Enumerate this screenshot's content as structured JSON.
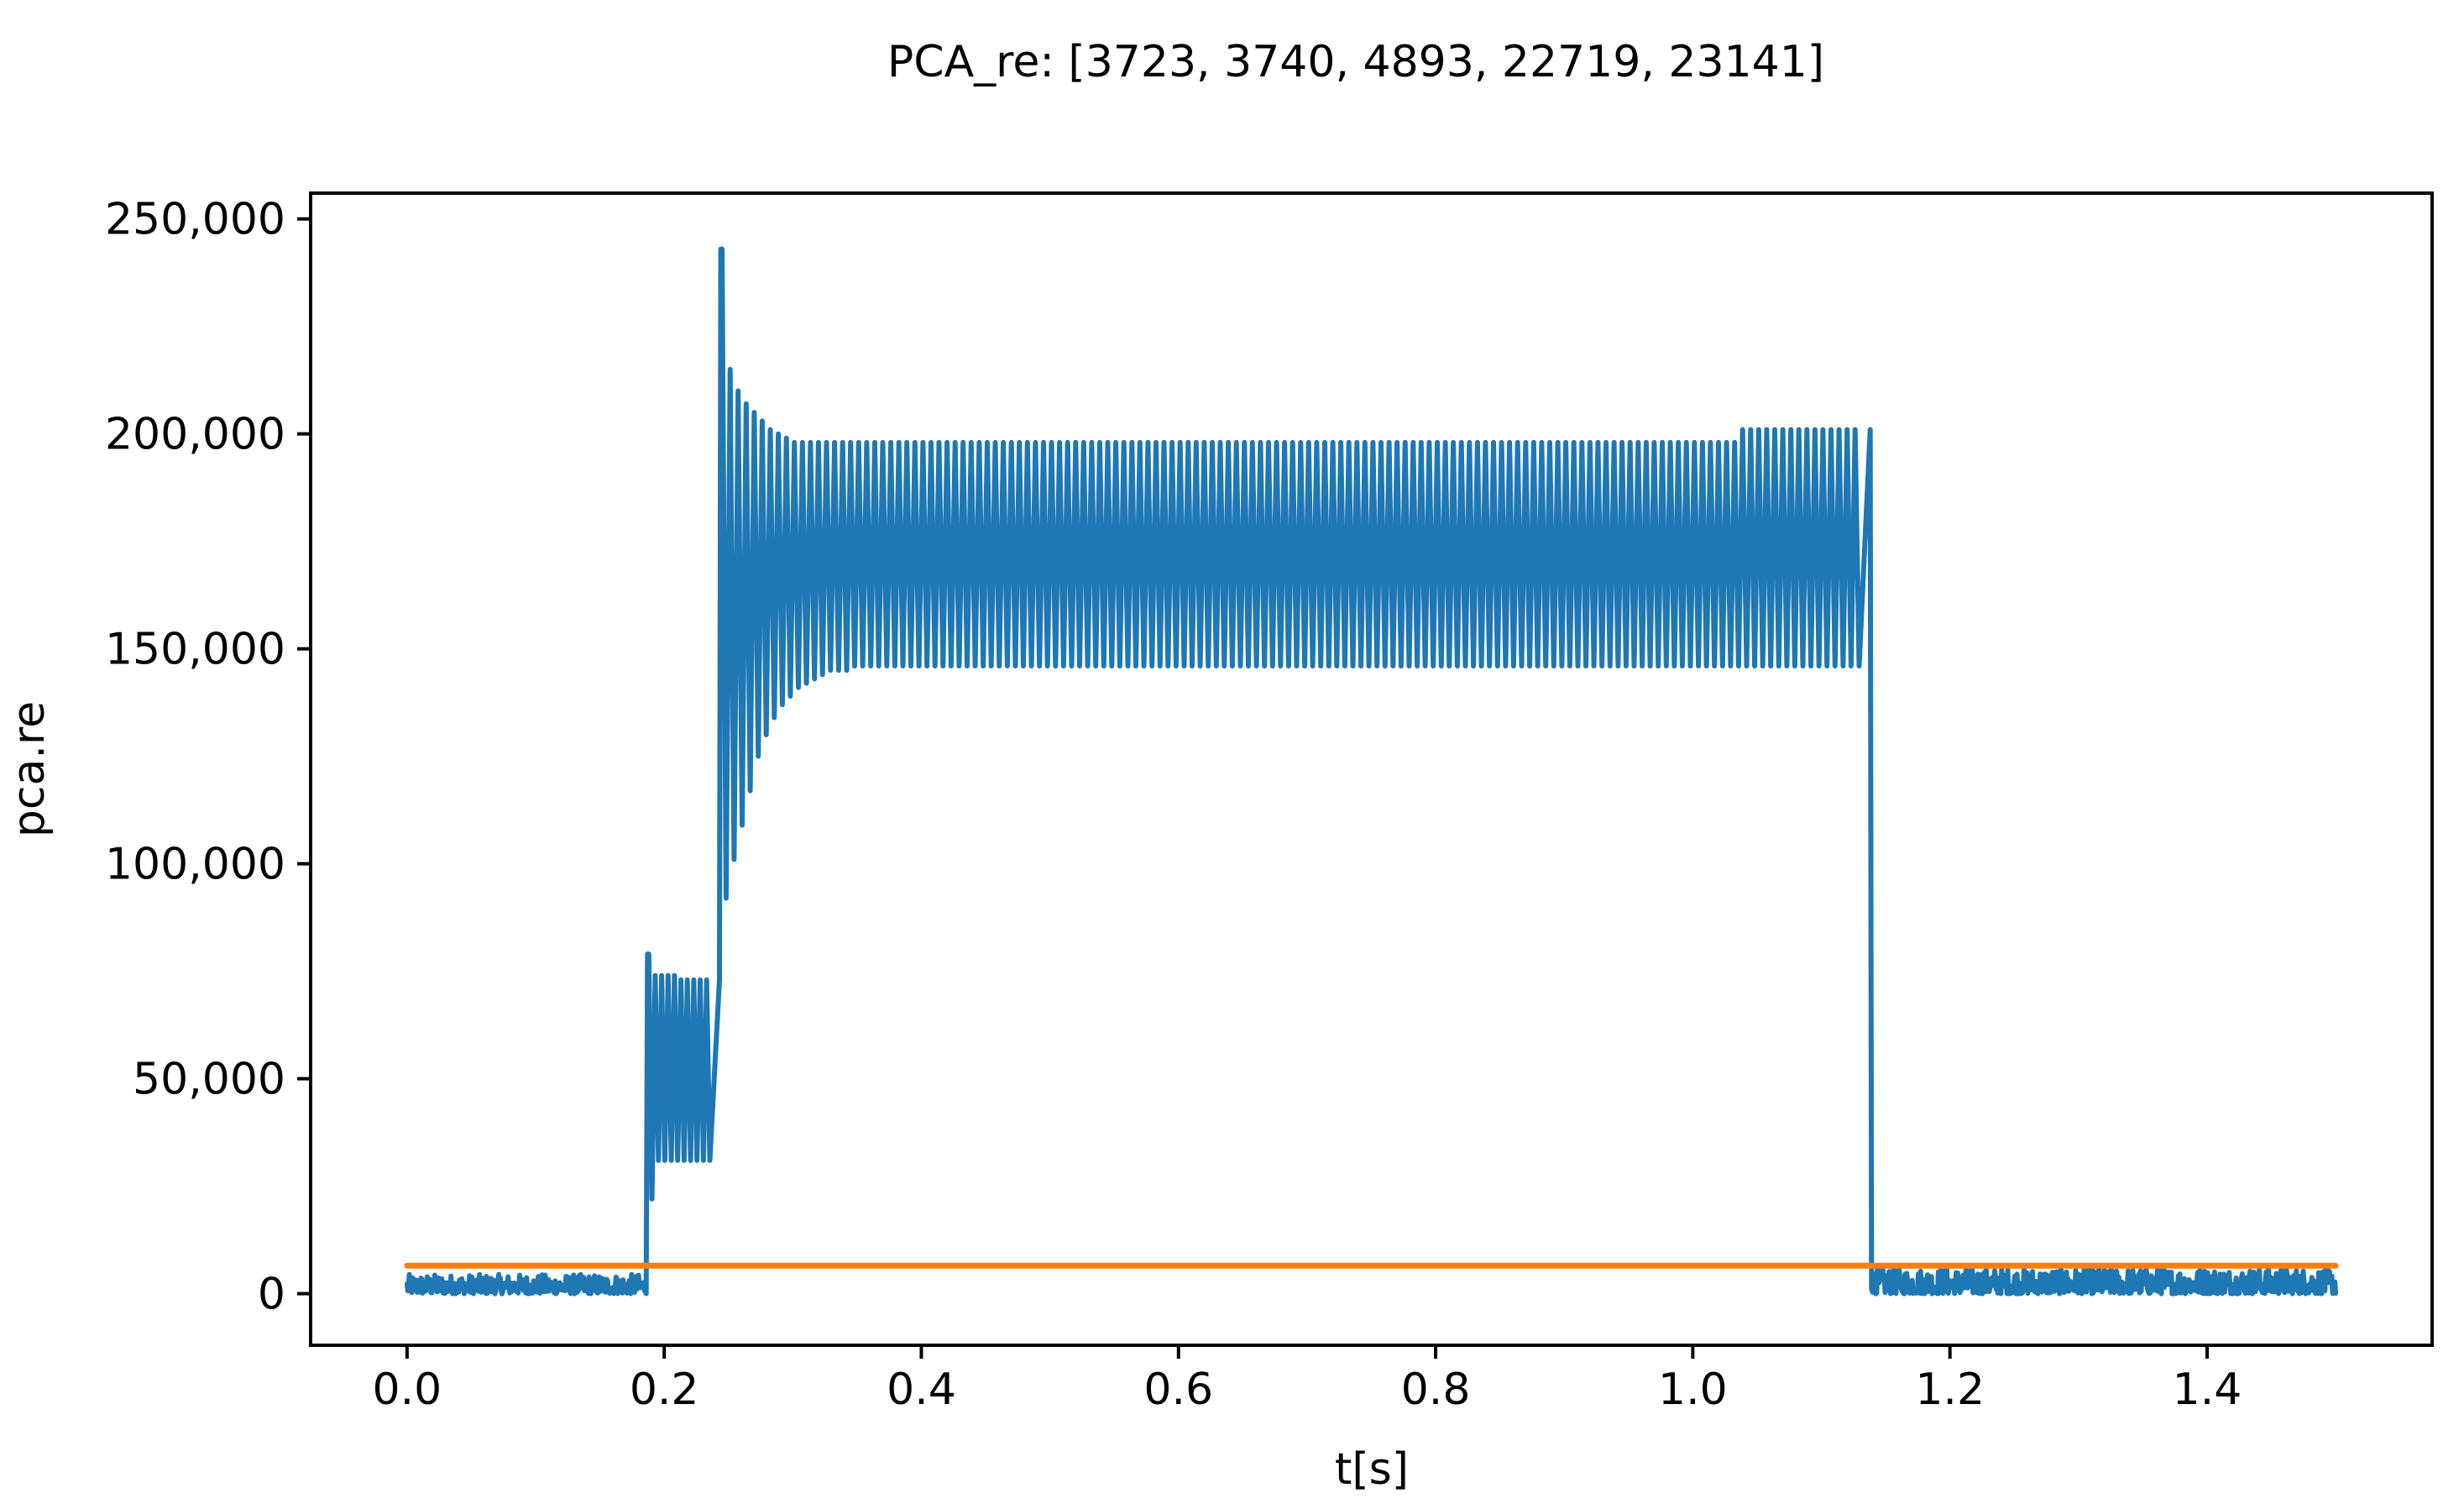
{
  "chart_data": {
    "type": "line",
    "title": "PCA_re: [3723, 3740, 4893, 22719, 23141]",
    "xlabel": "t[s]",
    "ylabel": "pca.re",
    "xlim": [
      -0.075,
      1.575
    ],
    "ylim": [
      -12000,
      256000
    ],
    "grid": false,
    "legend": "none",
    "x_ticks": [
      0.0,
      0.2,
      0.4,
      0.6,
      0.8,
      1.0,
      1.2,
      1.4
    ],
    "x_tick_labels": [
      "0.0",
      "0.2",
      "0.4",
      "0.6",
      "0.8",
      "1.0",
      "1.2",
      "1.4"
    ],
    "y_ticks": [
      0,
      50000,
      100000,
      150000,
      200000,
      250000
    ],
    "y_tick_labels": [
      "0",
      "50,000",
      "100,000",
      "150,000",
      "200,000",
      "250,000"
    ],
    "colors": {
      "signal": "#1f77b4",
      "threshold": "#ff7f0e"
    },
    "series": [
      {
        "style": "signal",
        "segments": [
          {
            "kind": "noise",
            "t0": 0.0,
            "t1": 0.186,
            "low": 0,
            "high": 4500
          },
          {
            "kind": "step",
            "t": 0.187,
            "to": 79000
          },
          {
            "kind": "oscillation",
            "t0": 0.188,
            "t1": 0.243,
            "period": 0.005,
            "peaks": [
              79000,
              74000,
              74000,
              74000,
              74000,
              73000,
              73000,
              73000,
              73000,
              73000,
              73000
            ],
            "troughs": [
              22000,
              31000,
              31000,
              31000,
              31000,
              31000,
              31000,
              31000,
              31000,
              31000,
              31000
            ]
          },
          {
            "kind": "step",
            "t": 0.244,
            "to": 243000
          },
          {
            "kind": "oscillation",
            "t0": 0.245,
            "t1": 1.138,
            "period": 0.00625,
            "peaks": [
              243000,
              215000,
              210000,
              207000,
              205000,
              203000,
              201000,
              200000,
              199000,
              198000,
              198000,
              198000,
              198000,
              198000,
              198000,
              198000,
              198000,
              198000,
              198000,
              198000,
              198000,
              198000,
              198000,
              198000,
              198000,
              198000,
              198000,
              198000,
              198000,
              198000,
              198000,
              198000,
              198000,
              198000,
              198000,
              198000,
              198000,
              198000,
              198000,
              198000,
              198000,
              198000,
              198000,
              198000,
              198000,
              198000,
              198000,
              198000,
              198000,
              198000,
              198000,
              198000,
              198000,
              198000,
              198000,
              198000,
              198000,
              198000,
              198000,
              198000,
              198000,
              198000,
              198000,
              198000,
              198000,
              198000,
              198000,
              198000,
              198000,
              198000,
              198000,
              198000,
              198000,
              198000,
              198000,
              198000,
              198000,
              198000,
              198000,
              198000,
              198000,
              198000,
              198000,
              198000,
              198000,
              198000,
              198000,
              198000,
              198000,
              198000,
              198000,
              198000,
              198000,
              198000,
              198000,
              198000,
              198000,
              198000,
              198000,
              198000,
              198000,
              198000,
              198000,
              198000,
              198000,
              198000,
              198000,
              198000,
              198000,
              198000,
              198000,
              198000,
              198000,
              198000,
              198000,
              198000,
              198000,
              198000,
              198000,
              198000,
              198000,
              198000,
              198000,
              198000,
              198000,
              198000,
              198000,
              201000,
              201000,
              201000,
              201000,
              201000,
              201000,
              201000,
              201000,
              201000,
              201000,
              201000,
              201000
            ],
            "troughs": [
              92000,
              101000,
              109000,
              117000,
              125000,
              130000,
              134000,
              137000,
              139000,
              141000,
              142000,
              143000,
              144000,
              145000,
              145000,
              145000,
              146000,
              146000,
              146000,
              146000,
              146000,
              146000,
              146000,
              146000,
              146000,
              146000,
              146000,
              146000,
              146000,
              146000,
              146000,
              146000,
              146000,
              146000,
              146000,
              146000,
              146000,
              146000,
              146000,
              146000,
              146000,
              146000,
              146000,
              146000,
              146000,
              146000,
              146000,
              146000,
              146000,
              146000,
              146000,
              146000,
              146000,
              146000,
              146000,
              146000,
              146000,
              146000,
              146000,
              146000,
              146000,
              146000,
              146000,
              146000,
              146000,
              146000,
              146000,
              146000,
              146000,
              146000,
              146000,
              146000,
              146000,
              146000,
              146000,
              146000,
              146000,
              146000,
              146000,
              146000,
              146000,
              146000,
              146000,
              146000,
              146000,
              146000,
              146000,
              146000,
              146000,
              146000,
              146000,
              146000,
              146000,
              146000,
              146000,
              146000,
              146000,
              146000,
              146000,
              146000,
              146000,
              146000,
              146000,
              146000,
              146000,
              146000,
              146000,
              146000,
              146000,
              146000,
              146000,
              146000,
              146000,
              146000,
              146000,
              146000,
              146000,
              146000,
              146000,
              146000,
              146000,
              146000,
              146000,
              146000,
              146000,
              146000,
              146000,
              146000,
              146000,
              146000,
              146000,
              146000,
              146000,
              146000,
              146000,
              146000,
              146000,
              146000,
              146000,
              146000,
              146000,
              146000,
              146000
            ]
          },
          {
            "kind": "step",
            "t": 1.139,
            "to": 1000
          },
          {
            "kind": "noise",
            "t0": 1.14,
            "t1": 1.5,
            "low": 0,
            "high": 6000
          }
        ]
      },
      {
        "style": "threshold",
        "x": [
          0.0,
          1.5
        ],
        "y": [
          6500,
          6500
        ]
      }
    ]
  }
}
